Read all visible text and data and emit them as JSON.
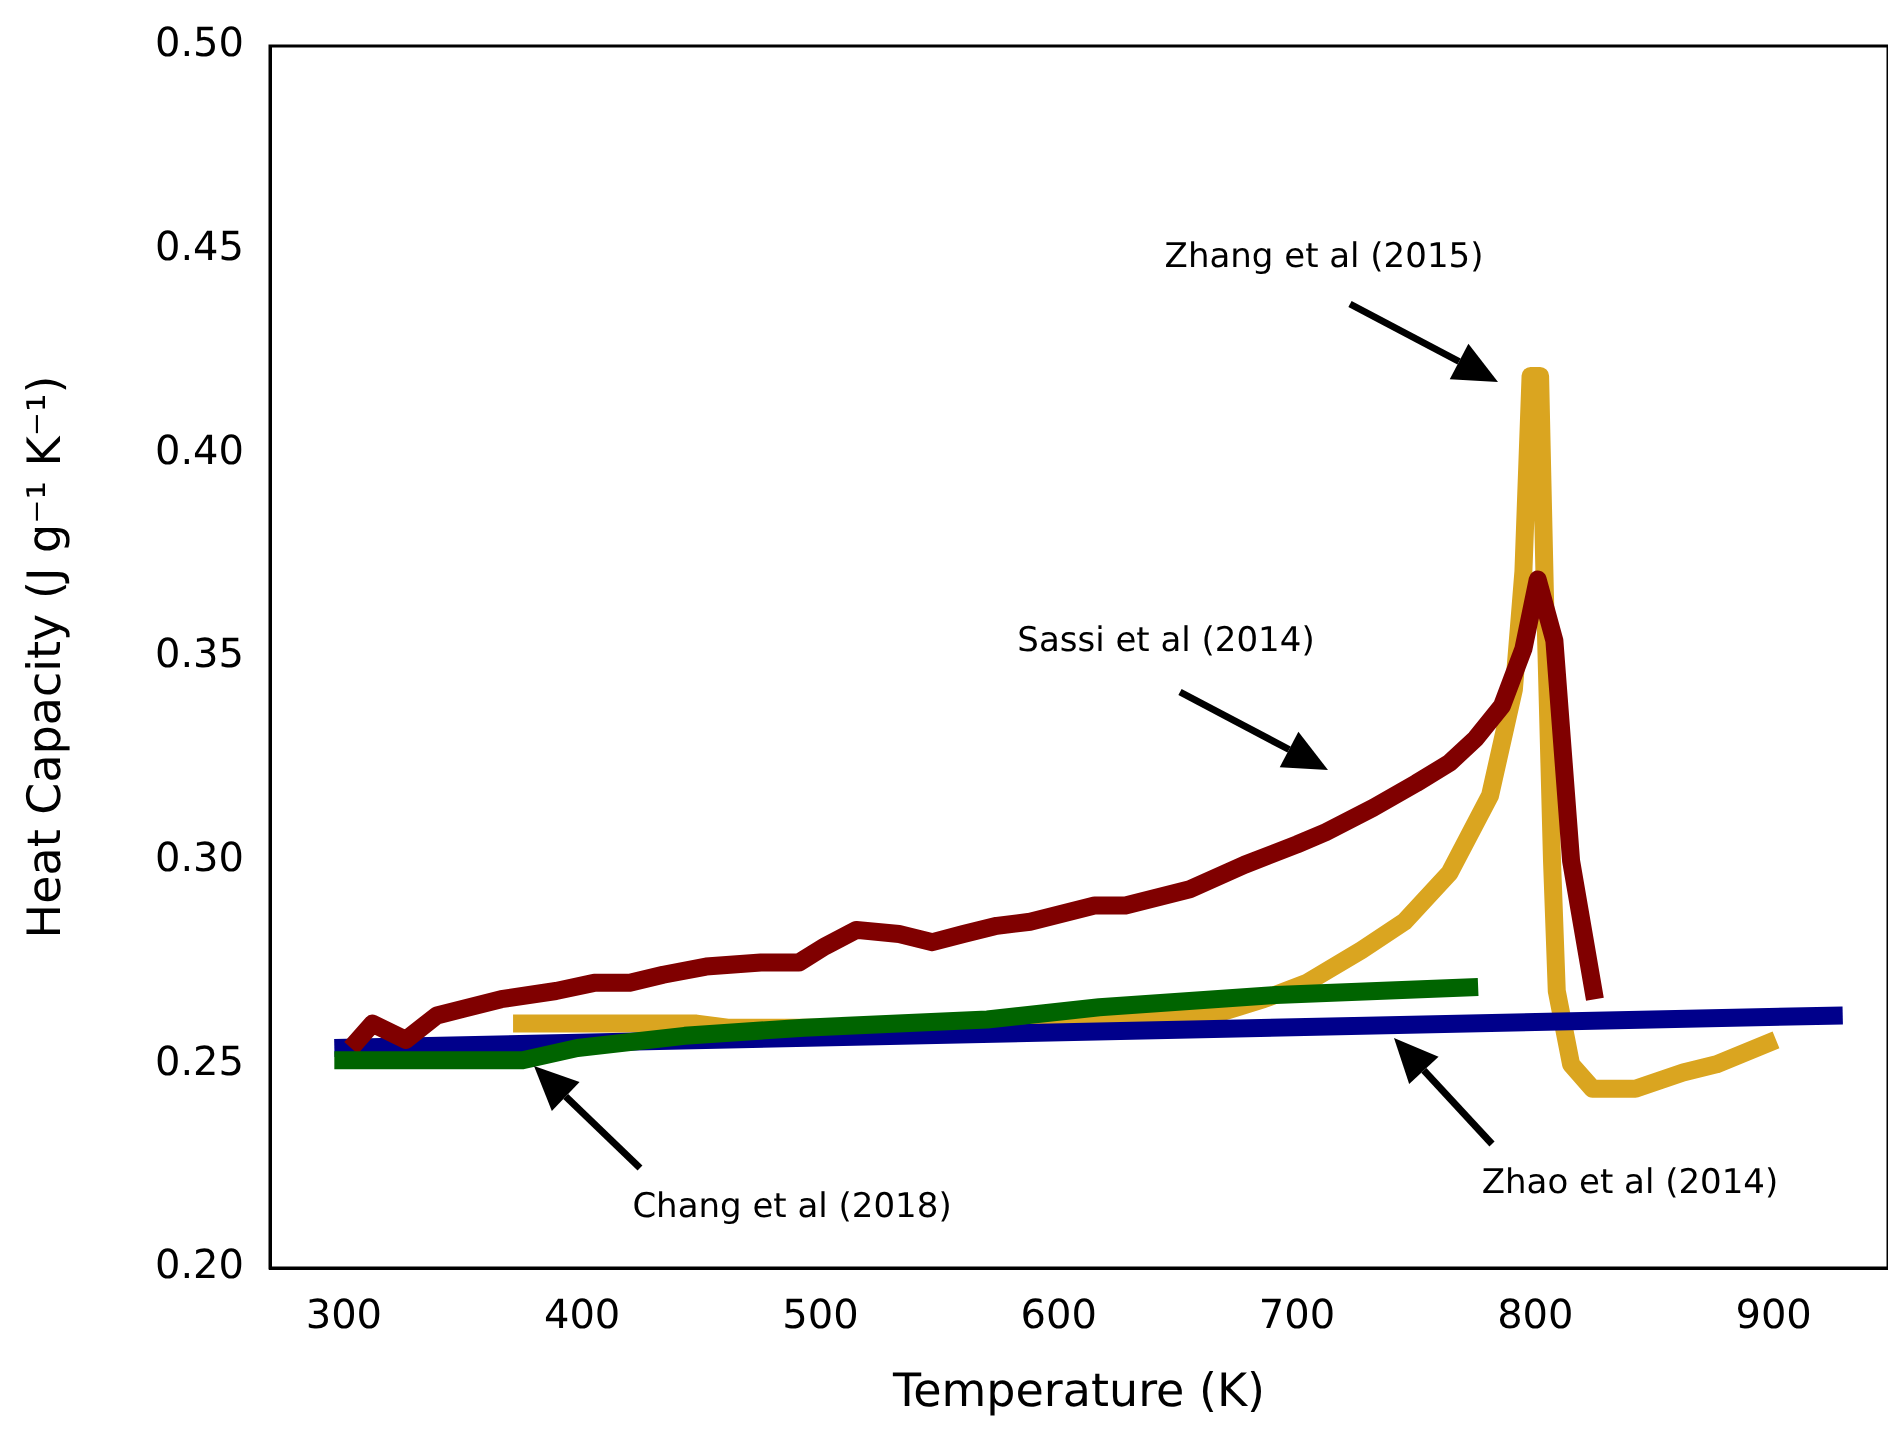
{
  "chart_data": {
    "type": "line",
    "xlabel": "Temperature (K)",
    "ylabel": "Heat Capacity (J g⁻¹ K⁻¹)",
    "xlim": [
      269,
      948
    ],
    "xticks": [
      300,
      400,
      500,
      600,
      700,
      800,
      900
    ],
    "ylim": [
      0.2,
      0.5
    ],
    "yticks": [
      {
        "value": 0.2,
        "label": "0.20"
      },
      {
        "value": 0.25,
        "label": "0.25"
      },
      {
        "value": 0.3,
        "label": "0.30"
      },
      {
        "value": 0.35,
        "label": "0.35"
      },
      {
        "value": 0.4,
        "label": "0.40"
      },
      {
        "value": 0.45,
        "label": "0.45"
      },
      {
        "value": 0.5,
        "label": "0.50"
      }
    ],
    "grid": false,
    "legend": false,
    "series": [
      {
        "color": "#006400",
        "x": [
          296,
          375,
          398,
          443,
          493,
          570,
          617,
          691,
          776
        ],
        "values": [
          0.251,
          0.251,
          0.254,
          0.257,
          0.259,
          0.261,
          0.264,
          0.267,
          0.269
        ]
      },
      {
        "color": "#800000",
        "x": [
          303,
          312,
          326,
          339,
          366,
          389,
          405,
          420,
          434,
          452,
          475,
          491,
          502,
          515,
          533,
          547,
          560,
          574,
          588,
          615,
          628,
          655,
          678,
          700,
          712,
          732,
          750,
          764,
          775,
          786,
          795,
          801,
          808,
          815,
          825
        ],
        "values": [
          0.254,
          0.26,
          0.256,
          0.262,
          0.266,
          0.268,
          0.27,
          0.27,
          0.272,
          0.274,
          0.275,
          0.275,
          0.279,
          0.283,
          0.282,
          0.28,
          0.282,
          0.284,
          0.285,
          0.289,
          0.289,
          0.293,
          0.299,
          0.304,
          0.307,
          0.313,
          0.319,
          0.324,
          0.33,
          0.338,
          0.352,
          0.369,
          0.354,
          0.3,
          0.266
        ]
      },
      {
        "color": "#00008b",
        "x": [
          296,
          929
        ],
        "values": [
          0.254,
          0.262
        ]
      },
      {
        "color": "#daa520",
        "x": [
          371,
          448,
          461,
          533,
          664,
          686,
          704,
          727,
          745,
          764,
          781,
          791,
          795,
          798,
          802,
          804,
          807,
          809,
          815,
          824,
          842,
          862,
          876,
          901
        ],
        "values": [
          0.26,
          0.26,
          0.259,
          0.259,
          0.262,
          0.266,
          0.27,
          0.278,
          0.285,
          0.297,
          0.316,
          0.342,
          0.371,
          0.419,
          0.419,
          0.366,
          0.3,
          0.268,
          0.25,
          0.244,
          0.244,
          0.248,
          0.25,
          0.256
        ]
      }
    ],
    "annotations": [
      "Zhang et al (2015)",
      "Sassi et al (2014)",
      "Chang et al (2018)",
      "Zhao et al (2014)"
    ]
  }
}
